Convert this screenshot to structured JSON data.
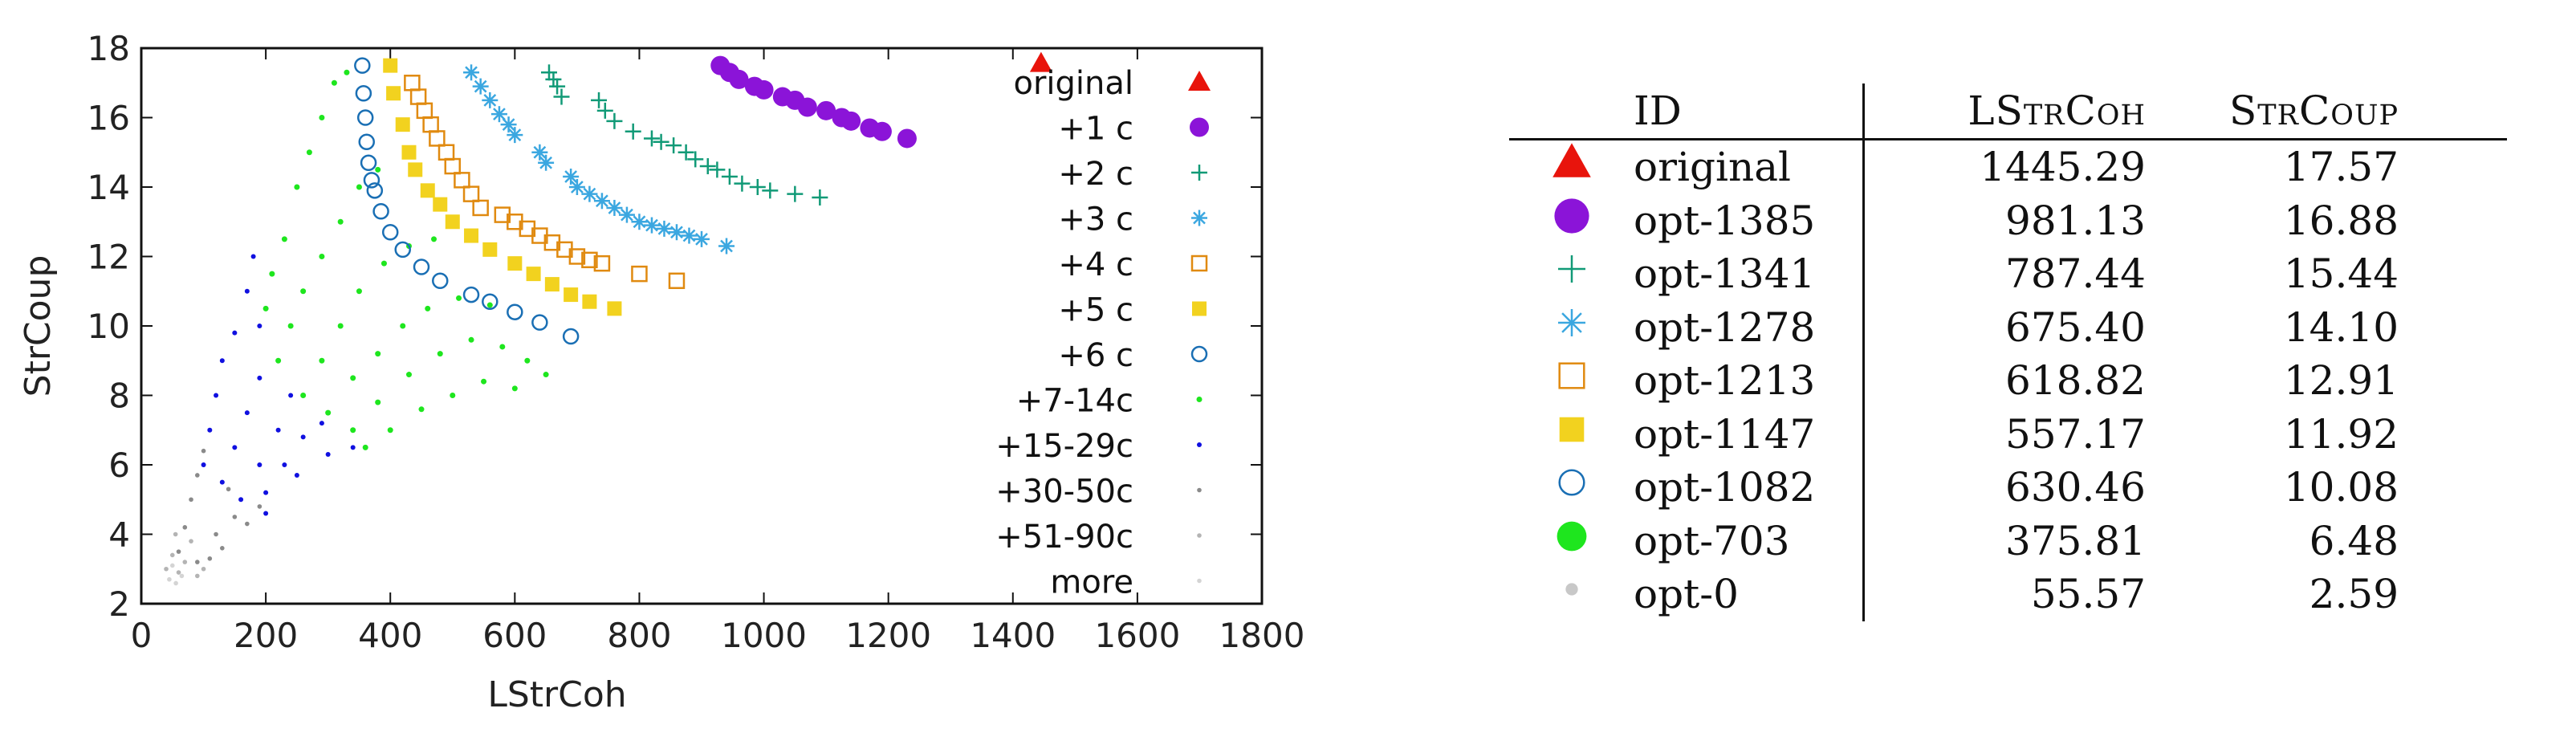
{
  "chart_data": {
    "type": "scatter",
    "xlabel": "LStrCoh",
    "ylabel": "StrCoup",
    "xlim": [
      0,
      1800
    ],
    "ylim": [
      2,
      18
    ],
    "xticks": [
      0,
      200,
      400,
      600,
      800,
      1000,
      1200,
      1400,
      1600,
      1800
    ],
    "yticks": [
      2,
      4,
      6,
      8,
      10,
      12,
      14,
      16,
      18
    ],
    "legend_position": "right-inside",
    "series": [
      {
        "name": "original",
        "marker": "triangle",
        "color": "#e8140c",
        "points": [
          [
            1445.29,
            17.57
          ]
        ]
      },
      {
        "name": "+1 c",
        "marker": "filled-circle",
        "color": "#8b14d8",
        "points": [
          [
            930,
            17.5
          ],
          [
            945,
            17.3
          ],
          [
            960,
            17.1
          ],
          [
            985,
            16.9
          ],
          [
            1000,
            16.8
          ],
          [
            1030,
            16.6
          ],
          [
            1050,
            16.5
          ],
          [
            1070,
            16.3
          ],
          [
            1100,
            16.2
          ],
          [
            1125,
            16.0
          ],
          [
            1140,
            15.9
          ],
          [
            1170,
            15.7
          ],
          [
            1190,
            15.6
          ],
          [
            1230,
            15.4
          ]
        ]
      },
      {
        "name": "+2 c",
        "marker": "plus",
        "color": "#119a77",
        "points": [
          [
            655,
            17.3
          ],
          [
            662,
            17.1
          ],
          [
            668,
            16.9
          ],
          [
            675,
            16.6
          ],
          [
            735,
            16.5
          ],
          [
            745,
            16.2
          ],
          [
            760,
            15.9
          ],
          [
            790,
            15.6
          ],
          [
            820,
            15.4
          ],
          [
            835,
            15.3
          ],
          [
            855,
            15.2
          ],
          [
            875,
            15.0
          ],
          [
            890,
            14.8
          ],
          [
            910,
            14.6
          ],
          [
            925,
            14.5
          ],
          [
            945,
            14.3
          ],
          [
            965,
            14.1
          ],
          [
            990,
            14.0
          ],
          [
            1010,
            13.9
          ],
          [
            1050,
            13.8
          ],
          [
            1090,
            13.7
          ]
        ]
      },
      {
        "name": "+3 c",
        "marker": "asterisk",
        "color": "#3ba7e0",
        "points": [
          [
            530,
            17.3
          ],
          [
            545,
            16.9
          ],
          [
            560,
            16.5
          ],
          [
            575,
            16.1
          ],
          [
            590,
            15.8
          ],
          [
            600,
            15.5
          ],
          [
            640,
            15.0
          ],
          [
            650,
            14.7
          ],
          [
            690,
            14.3
          ],
          [
            700,
            14.0
          ],
          [
            720,
            13.8
          ],
          [
            740,
            13.6
          ],
          [
            760,
            13.4
          ],
          [
            780,
            13.2
          ],
          [
            800,
            13.0
          ],
          [
            820,
            12.9
          ],
          [
            840,
            12.8
          ],
          [
            860,
            12.7
          ],
          [
            880,
            12.6
          ],
          [
            900,
            12.5
          ],
          [
            940,
            12.3
          ]
        ]
      },
      {
        "name": "+4 c",
        "marker": "open-square",
        "color": "#e08a10",
        "points": [
          [
            435,
            17.0
          ],
          [
            445,
            16.6
          ],
          [
            455,
            16.2
          ],
          [
            465,
            15.8
          ],
          [
            475,
            15.4
          ],
          [
            490,
            15.0
          ],
          [
            500,
            14.6
          ],
          [
            515,
            14.2
          ],
          [
            530,
            13.8
          ],
          [
            545,
            13.4
          ],
          [
            580,
            13.2
          ],
          [
            600,
            13.0
          ],
          [
            620,
            12.8
          ],
          [
            640,
            12.6
          ],
          [
            660,
            12.4
          ],
          [
            680,
            12.2
          ],
          [
            700,
            12.0
          ],
          [
            720,
            11.9
          ],
          [
            740,
            11.8
          ],
          [
            800,
            11.5
          ],
          [
            860,
            11.3
          ]
        ]
      },
      {
        "name": "+5 c",
        "marker": "filled-square",
        "color": "#f2d21f",
        "points": [
          [
            400,
            17.5
          ],
          [
            405,
            16.7
          ],
          [
            420,
            15.8
          ],
          [
            430,
            15.0
          ],
          [
            440,
            14.5
          ],
          [
            460,
            13.9
          ],
          [
            480,
            13.5
          ],
          [
            500,
            13.0
          ],
          [
            530,
            12.6
          ],
          [
            560,
            12.2
          ],
          [
            600,
            11.8
          ],
          [
            630,
            11.5
          ],
          [
            660,
            11.2
          ],
          [
            690,
            10.9
          ],
          [
            720,
            10.7
          ],
          [
            760,
            10.5
          ]
        ]
      },
      {
        "name": "+6 c",
        "marker": "open-circle",
        "color": "#1a6fb4",
        "points": [
          [
            355,
            17.5
          ],
          [
            357,
            16.7
          ],
          [
            360,
            16.0
          ],
          [
            362,
            15.3
          ],
          [
            365,
            14.7
          ],
          [
            370,
            14.2
          ],
          [
            375,
            13.9
          ],
          [
            385,
            13.3
          ],
          [
            400,
            12.7
          ],
          [
            420,
            12.2
          ],
          [
            450,
            11.7
          ],
          [
            480,
            11.3
          ],
          [
            530,
            10.9
          ],
          [
            560,
            10.7
          ],
          [
            600,
            10.4
          ],
          [
            640,
            10.1
          ],
          [
            690,
            9.7
          ]
        ]
      },
      {
        "name": "+7-14c",
        "marker": "dot",
        "color": "#1ee61e",
        "points": [
          [
            200,
            10.5
          ],
          [
            210,
            11.5
          ],
          [
            230,
            12.5
          ],
          [
            250,
            14.0
          ],
          [
            270,
            15.0
          ],
          [
            290,
            16.0
          ],
          [
            310,
            17.0
          ],
          [
            330,
            17.3
          ],
          [
            220,
            9.0
          ],
          [
            240,
            10.0
          ],
          [
            260,
            11.0
          ],
          [
            290,
            12.0
          ],
          [
            320,
            13.0
          ],
          [
            350,
            14.0
          ],
          [
            380,
            14.5
          ],
          [
            260,
            8.0
          ],
          [
            290,
            9.0
          ],
          [
            320,
            10.0
          ],
          [
            350,
            11.0
          ],
          [
            390,
            11.8
          ],
          [
            430,
            12.3
          ],
          [
            470,
            12.5
          ],
          [
            300,
            7.5
          ],
          [
            340,
            8.5
          ],
          [
            380,
            9.2
          ],
          [
            420,
            10.0
          ],
          [
            460,
            10.5
          ],
          [
            510,
            10.8
          ],
          [
            560,
            10.6
          ],
          [
            340,
            7.0
          ],
          [
            380,
            7.8
          ],
          [
            430,
            8.6
          ],
          [
            480,
            9.2
          ],
          [
            530,
            9.6
          ],
          [
            580,
            9.4
          ],
          [
            620,
            9.0
          ],
          [
            650,
            8.6
          ],
          [
            400,
            7.0
          ],
          [
            450,
            7.6
          ],
          [
            500,
            8.0
          ],
          [
            550,
            8.4
          ],
          [
            600,
            8.2
          ],
          [
            360,
            6.5
          ]
        ]
      },
      {
        "name": "+15-29c",
        "marker": "small-dot",
        "color": "#1010e0",
        "points": [
          [
            100,
            6.0
          ],
          [
            110,
            7.0
          ],
          [
            120,
            8.0
          ],
          [
            130,
            9.0
          ],
          [
            150,
            9.8
          ],
          [
            170,
            11.0
          ],
          [
            180,
            12.0
          ],
          [
            190,
            10.0
          ],
          [
            130,
            5.5
          ],
          [
            150,
            6.5
          ],
          [
            170,
            7.5
          ],
          [
            190,
            8.5
          ],
          [
            160,
            5.0
          ],
          [
            190,
            6.0
          ],
          [
            220,
            7.0
          ],
          [
            240,
            8.0
          ],
          [
            200,
            5.2
          ],
          [
            230,
            6.0
          ],
          [
            260,
            6.8
          ],
          [
            290,
            7.2
          ],
          [
            250,
            5.7
          ],
          [
            300,
            6.3
          ],
          [
            340,
            6.5
          ],
          [
            200,
            4.6
          ]
        ]
      },
      {
        "name": "+30-50c",
        "marker": "tiny-dot",
        "color": "#8a8a8a",
        "points": [
          [
            60,
            3.5
          ],
          [
            70,
            4.2
          ],
          [
            80,
            5.0
          ],
          [
            90,
            5.7
          ],
          [
            100,
            6.4
          ],
          [
            110,
            7.0
          ],
          [
            120,
            4.0
          ],
          [
            130,
            3.6
          ],
          [
            150,
            4.5
          ],
          [
            170,
            4.3
          ],
          [
            190,
            4.8
          ],
          [
            140,
            5.3
          ],
          [
            90,
            3.2
          ],
          [
            110,
            3.3
          ]
        ]
      },
      {
        "name": "+51-90c",
        "marker": "tiny-dot",
        "color": "#b4b4b4",
        "points": [
          [
            40,
            3.0
          ],
          [
            50,
            3.4
          ],
          [
            60,
            2.9
          ],
          [
            70,
            3.2
          ],
          [
            80,
            3.8
          ],
          [
            90,
            2.8
          ],
          [
            55,
            4.0
          ],
          [
            100,
            3.0
          ]
        ]
      },
      {
        "name": "more",
        "marker": "tiny-dot",
        "color": "#d4d4d4",
        "points": [
          [
            45,
            2.7
          ],
          [
            55.57,
            2.59
          ],
          [
            65,
            2.8
          ],
          [
            50,
            3.1
          ]
        ]
      }
    ]
  },
  "table": {
    "headers": {
      "id": "ID",
      "lstrcoh": "LStrCoh",
      "strcoup": "StrCoup"
    },
    "rows": [
      {
        "marker": "triangle",
        "color": "#e8140c",
        "id": "original",
        "lstrcoh": "1445.29",
        "strcoup": "17.57"
      },
      {
        "marker": "filled-circle",
        "color": "#8b14d8",
        "id": "opt-1385",
        "lstrcoh": "981.13",
        "strcoup": "16.88"
      },
      {
        "marker": "plus",
        "color": "#119a77",
        "id": "opt-1341",
        "lstrcoh": "787.44",
        "strcoup": "15.44"
      },
      {
        "marker": "asterisk",
        "color": "#3ba7e0",
        "id": "opt-1278",
        "lstrcoh": "675.40",
        "strcoup": "14.10"
      },
      {
        "marker": "open-square",
        "color": "#e08a10",
        "id": "opt-1213",
        "lstrcoh": "618.82",
        "strcoup": "12.91"
      },
      {
        "marker": "filled-square",
        "color": "#f2d21f",
        "id": "opt-1147",
        "lstrcoh": "557.17",
        "strcoup": "11.92"
      },
      {
        "marker": "open-circle",
        "color": "#1a6fb4",
        "id": "opt-1082",
        "lstrcoh": "630.46",
        "strcoup": "10.08"
      },
      {
        "marker": "filled-circle-large",
        "color": "#1ee61e",
        "id": "opt-703",
        "lstrcoh": "375.81",
        "strcoup": "6.48"
      },
      {
        "marker": "small-filled-circle",
        "color": "#c8c8c8",
        "id": "opt-0",
        "lstrcoh": "55.57",
        "strcoup": "2.59"
      }
    ]
  }
}
